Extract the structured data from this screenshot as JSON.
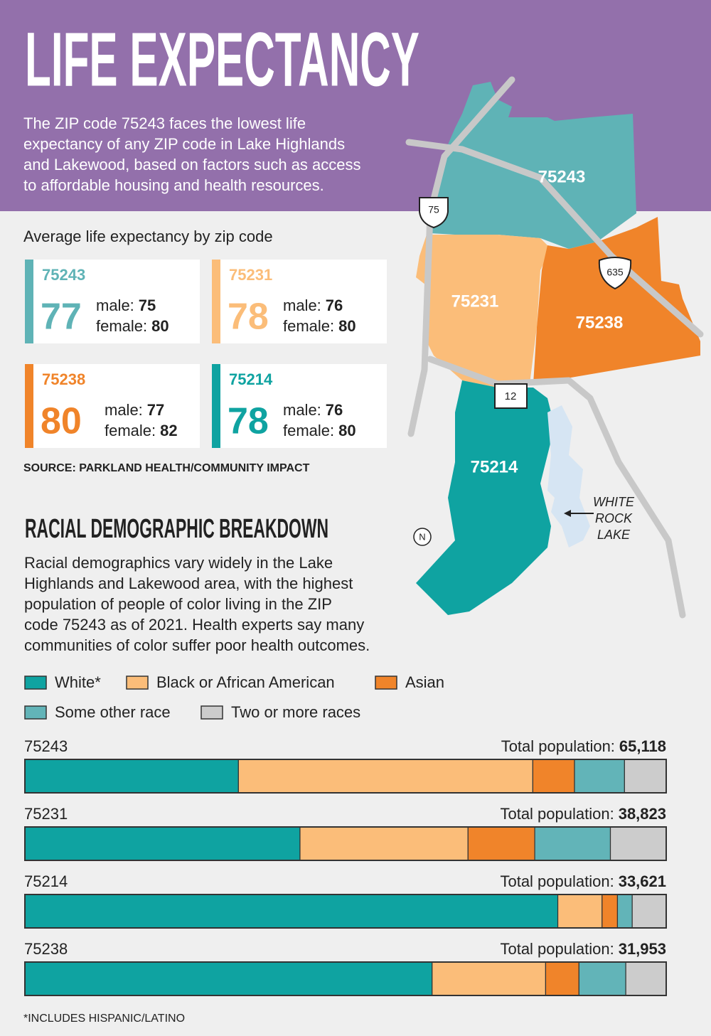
{
  "header": {
    "title": "LIFE EXPECTANCY",
    "description": [
      "The ZIP code 75243 faces the lowest life",
      "expectancy of any ZIP code in Lake Highlands",
      "and Lakewood, based on factors such as access",
      "to affordable housing and health resources."
    ]
  },
  "life_expectancy": {
    "subtitle": "Average life expectancy by zip code",
    "male_label": "male:",
    "female_label": "female:",
    "cards": [
      {
        "zip": "75243",
        "average": 77,
        "male": 75,
        "female": 80,
        "color": "#5fb3b6"
      },
      {
        "zip": "75231",
        "average": 78,
        "male": 76,
        "female": 80,
        "color": "#fbbd79"
      },
      {
        "zip": "75238",
        "average": 80,
        "male": 77,
        "female": 82,
        "color": "#f0842a"
      },
      {
        "zip": "75214",
        "average": 78,
        "male": 76,
        "female": 80,
        "color": "#0fa3a1"
      }
    ],
    "source": "SOURCE: PARKLAND HEALTH/COMMUNITY IMPACT"
  },
  "map": {
    "zips": [
      "75243",
      "75231",
      "75238",
      "75214"
    ],
    "highways": [
      "75",
      "635",
      "12"
    ],
    "north": "N",
    "lake": [
      "WHITE",
      "ROCK",
      "LAKE"
    ]
  },
  "demographics": {
    "title": "RACIAL DEMOGRAPHIC BREAKDOWN",
    "description": [
      "Racial demographics vary widely in the Lake",
      "Highlands and Lakewood area, with the highest",
      "population of people of color living in the ZIP",
      "code 75243 as of 2021. Health experts say many",
      "communities of color suffer poor health outcomes."
    ],
    "total_prefix": "Total population:",
    "footnote": "*INCLUDES HISPANIC/LATINO"
  },
  "chart_data": {
    "type": "stacked_barh",
    "categories": [
      "75243",
      "75231",
      "75214",
      "75238"
    ],
    "totals": [
      {
        "value": 65118,
        "label": "65,118"
      },
      {
        "value": 38823,
        "label": "38,823"
      },
      {
        "value": 33621,
        "label": "33,621"
      },
      {
        "value": 31953,
        "label": "31,953"
      }
    ],
    "xlim": [
      0,
      100
    ],
    "series": [
      {
        "name": "White*",
        "color": "#0fa3a1",
        "values": [
          33.3,
          42.9,
          83.1,
          63.5
        ]
      },
      {
        "name": "Black or African American",
        "color": "#fbbd79",
        "values": [
          45.9,
          26.2,
          6.9,
          17.7
        ]
      },
      {
        "name": "Asian",
        "color": "#f0842a",
        "values": [
          6.5,
          10.4,
          2.4,
          5.2
        ]
      },
      {
        "name": "Some other race",
        "color": "#62b4b8",
        "values": [
          7.8,
          11.8,
          2.3,
          7.3
        ]
      },
      {
        "name": "Two or more races",
        "color": "#cccccc",
        "values": [
          6.5,
          8.7,
          5.3,
          6.3
        ]
      }
    ]
  }
}
